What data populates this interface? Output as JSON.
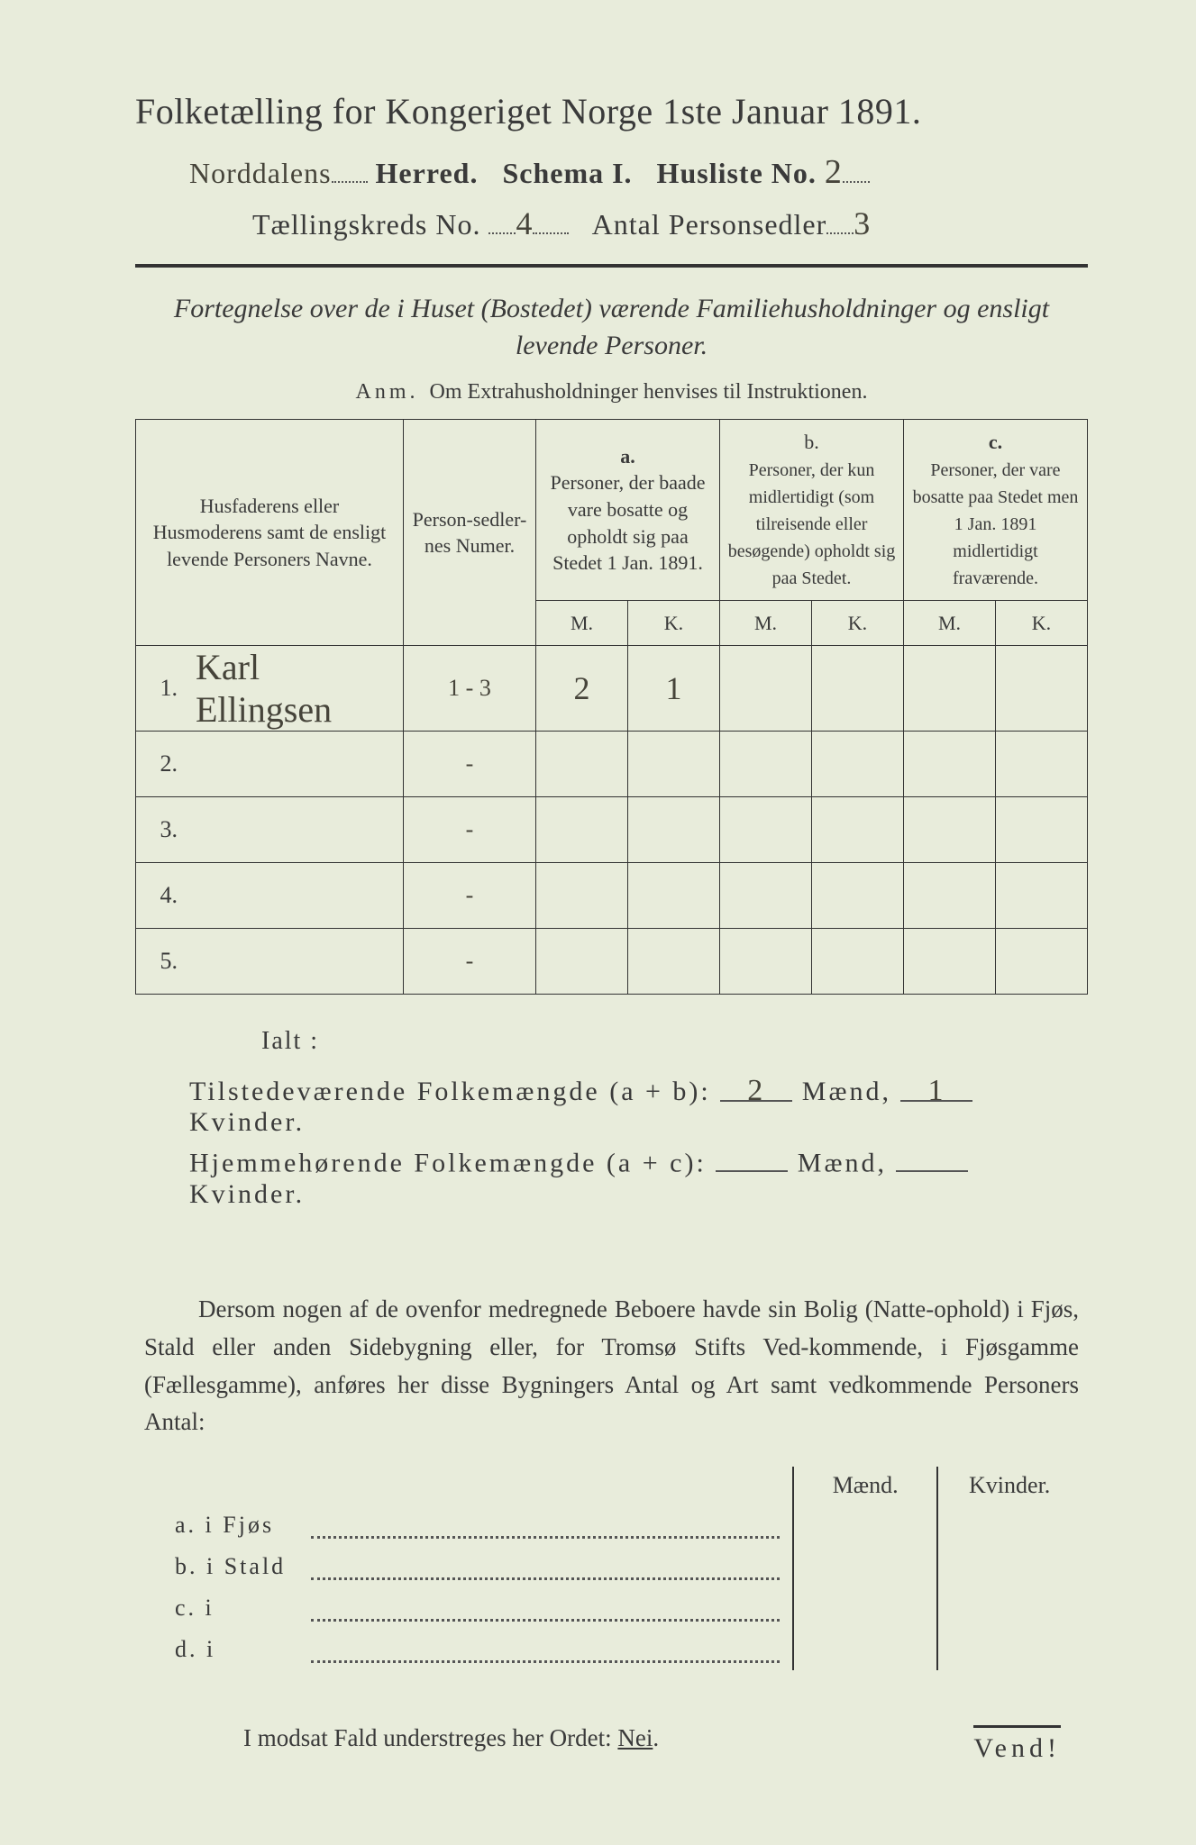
{
  "title": "Folketælling for Kongeriget Norge 1ste Januar 1891.",
  "line2": {
    "herred_hw": "Norddalens",
    "herred_label": "Herred.",
    "schema": "Schema I.",
    "husliste_label": "Husliste No.",
    "husliste_hw": "2"
  },
  "line3": {
    "kreds_label": "Tællingskreds No.",
    "kreds_hw": "4",
    "antal_label": "Antal Personsedler",
    "antal_hw": "3"
  },
  "subhead": "Fortegnelse over de i Huset (Bostedet) værende Familiehusholdninger og ensligt levende Personer.",
  "anm_label": "Anm.",
  "anm_text": "Om Extrahusholdninger henvises til Instruktionen.",
  "table": {
    "head": {
      "names": "Husfaderens eller Husmoderens samt de ensligt levende Personers Navne.",
      "numer": "Person-sedler-nes Numer.",
      "a_tag": "a.",
      "a": "Personer, der baade vare bosatte og opholdt sig paa Stedet 1 Jan. 1891.",
      "b_tag": "b.",
      "b": "Personer, der kun midlertidigt (som tilreisende eller besøgende) opholdt sig paa Stedet.",
      "c_tag": "c.",
      "c": "Personer, der vare bosatte paa Stedet men 1 Jan. 1891 midlertidigt fraværende.",
      "m": "M.",
      "k": "K."
    },
    "rows": [
      {
        "n": "1.",
        "name": "Karl Ellingsen",
        "num": "1 - 3",
        "am": "2",
        "ak": "1",
        "bm": "",
        "bk": "",
        "cm": "",
        "ck": ""
      },
      {
        "n": "2.",
        "name": "",
        "num": "-",
        "am": "",
        "ak": "",
        "bm": "",
        "bk": "",
        "cm": "",
        "ck": ""
      },
      {
        "n": "3.",
        "name": "",
        "num": "-",
        "am": "",
        "ak": "",
        "bm": "",
        "bk": "",
        "cm": "",
        "ck": ""
      },
      {
        "n": "4.",
        "name": "",
        "num": "-",
        "am": "",
        "ak": "",
        "bm": "",
        "bk": "",
        "cm": "",
        "ck": ""
      },
      {
        "n": "5.",
        "name": "",
        "num": "-",
        "am": "",
        "ak": "",
        "bm": "",
        "bk": "",
        "cm": "",
        "ck": ""
      }
    ]
  },
  "ialt": "Ialt :",
  "sum1": {
    "label": "Tilstedeværende Folkemængde (a + b):",
    "m": "2",
    "k": "1",
    "maend": "Mænd,",
    "kvinder": "Kvinder."
  },
  "sum2": {
    "label": "Hjemmehørende Folkemængde (a + c):",
    "m": "",
    "k": "",
    "maend": "Mænd,",
    "kvinder": "Kvinder."
  },
  "para": "Dersom nogen af de ovenfor medregnede Beboere havde sin Bolig (Natte-ophold) i Fjøs, Stald eller anden Sidebygning eller, for Tromsø Stifts Ved-kommende, i Fjøsgamme (Fællesgamme), anføres her disse Bygningers Antal og Art samt vedkommende Personers Antal:",
  "bldg": {
    "maend": "Mænd.",
    "kvinder": "Kvinder.",
    "rows": [
      {
        "l": "a.  i     Fjøs"
      },
      {
        "l": "b.  i     Stald"
      },
      {
        "l": "c.  i"
      },
      {
        "l": "d.  i"
      }
    ]
  },
  "nei": "I modsat Fald understreges her Ordet: ",
  "nei_word": "Nei",
  "vend": "Vend!"
}
